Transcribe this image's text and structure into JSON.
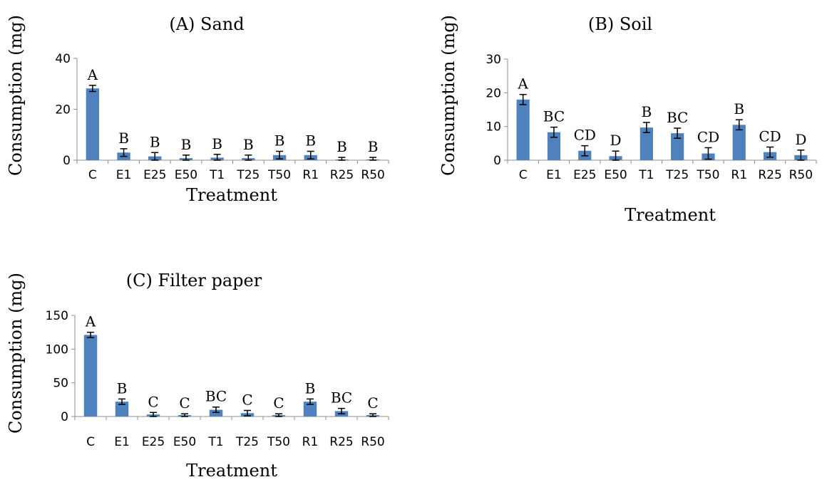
{
  "chart_data": [
    {
      "type": "bar",
      "title": "(A) Sand",
      "xlabel": "Treatment",
      "ylabel": "Consumption (mg)",
      "ylim": [
        0,
        40
      ],
      "yticks": [
        0,
        20,
        40
      ],
      "categories": [
        "C",
        "E1",
        "E25",
        "E50",
        "T1",
        "T25",
        "T50",
        "R1",
        "R25",
        "R50"
      ],
      "values": [
        28.2,
        3.0,
        1.5,
        0.8,
        1.0,
        0.8,
        2.0,
        2.0,
        0.3,
        0.3
      ],
      "errors": [
        1.2,
        1.5,
        1.5,
        1.2,
        1.3,
        1.2,
        1.5,
        1.5,
        0.8,
        0.8
      ],
      "labels": [
        "A",
        "B",
        "B",
        "B",
        "B",
        "B",
        "B",
        "B",
        "B",
        "B"
      ]
    },
    {
      "type": "bar",
      "title": "(B) Soil",
      "xlabel": "Treatment",
      "ylabel": "Consumption (mg)",
      "ylim": [
        0,
        30
      ],
      "yticks": [
        0,
        10,
        20,
        30
      ],
      "categories": [
        "C",
        "E1",
        "E25",
        "E50",
        "T1",
        "T25",
        "T50",
        "R1",
        "R25",
        "R50"
      ],
      "values": [
        18.0,
        8.3,
        2.8,
        1.2,
        9.7,
        8.0,
        2.0,
        10.5,
        2.4,
        1.5
      ],
      "errors": [
        1.5,
        1.5,
        1.5,
        1.5,
        1.5,
        1.5,
        1.7,
        1.5,
        1.5,
        1.5
      ],
      "labels": [
        "A",
        "BC",
        "CD",
        "D",
        "B",
        "BC",
        "CD",
        "B",
        "CD",
        "D"
      ]
    },
    {
      "type": "bar",
      "title": "(C) Filter paper",
      "xlabel": "Treatment",
      "ylabel": "Consumption (mg)",
      "ylim": [
        0,
        150
      ],
      "yticks": [
        0,
        50,
        100,
        150
      ],
      "categories": [
        "C",
        "E1",
        "E25",
        "E50",
        "T1",
        "T25",
        "T50",
        "R1",
        "R25",
        "R50"
      ],
      "values": [
        121,
        22,
        3,
        2,
        10,
        5,
        2,
        22,
        8,
        2
      ],
      "errors": [
        4,
        4,
        3,
        2,
        4,
        4,
        2,
        4,
        4,
        2
      ],
      "labels": [
        "A",
        "B",
        "C",
        "C",
        "BC",
        "C",
        "C",
        "B",
        "BC",
        "C"
      ]
    }
  ]
}
